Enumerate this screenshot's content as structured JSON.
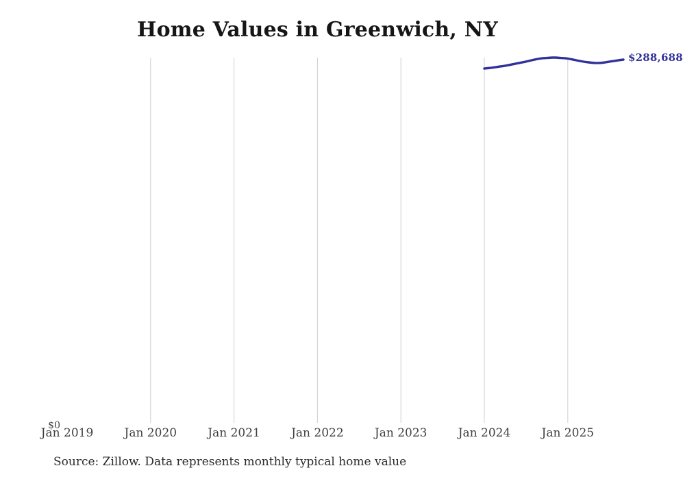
{
  "source_note": "Source: Zillow. Data represents monthly typical home value",
  "colors": {
    "line": "#31319B",
    "grid": "#cfcfcf",
    "title_text": "#161616",
    "axis_text": "#3f3f3f",
    "source_text": "#2b2b2b",
    "background": "#ffffff"
  },
  "chart_data": {
    "type": "line",
    "title": "Home Values in Greenwich, NY",
    "xlabel": "",
    "ylabel": "",
    "x_tick_labels": [
      "Jan 2019",
      "Jan 2020",
      "Jan 2021",
      "Jan 2022",
      "Jan 2023",
      "Jan 2024",
      "Jan 2025"
    ],
    "y_tick_labels": [
      "$0"
    ],
    "ylim": [
      0,
      290300
    ],
    "grid": "vertical yearly gridlines at Jan 2020 through Jan 2025; none at Jan 2019",
    "legend": "none",
    "annotation_end_label": "$288,688",
    "series": [
      {
        "name": "Monthly typical home value",
        "x": [
          "2024-01",
          "2024-02",
          "2024-03",
          "2024-04",
          "2024-05",
          "2024-06",
          "2024-07",
          "2024-08",
          "2024-09",
          "2024-10",
          "2024-11",
          "2024-12",
          "2025-01",
          "2025-02",
          "2025-03",
          "2025-04",
          "2025-05",
          "2025-06",
          "2025-07",
          "2025-08",
          "2025-09"
        ],
        "values": [
          281600,
          282200,
          283000,
          283800,
          284900,
          286000,
          287100,
          288400,
          289500,
          290000,
          290300,
          290000,
          289500,
          288400,
          287300,
          286500,
          286000,
          286200,
          287100,
          287900,
          288688
        ]
      }
    ]
  }
}
